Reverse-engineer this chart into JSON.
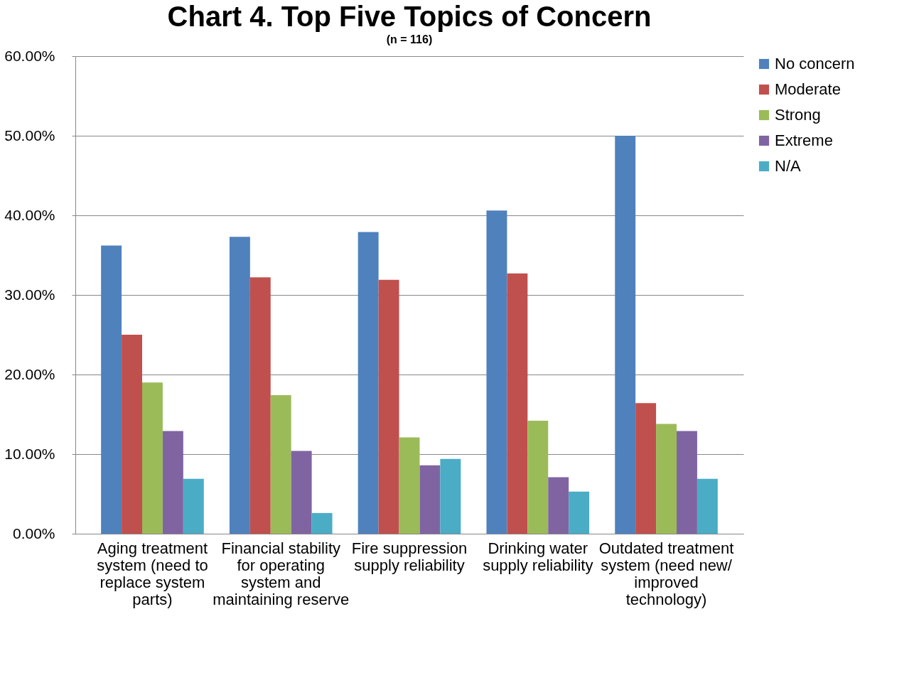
{
  "chart_data": {
    "type": "bar",
    "title": "Chart 4. Top Five Topics of Concern",
    "subtitle": "(n = 116)",
    "categories": [
      "Aging treatment system (need to replace system parts)",
      "Financial stability for operating system and maintaining reserve",
      "Fire suppression supply reliability",
      "Drinking water supply reliability",
      "Outdated treatment system (need new/ improved technology)"
    ],
    "series": [
      {
        "name": "No concern",
        "color": "#4f81bd",
        "values": [
          36.2,
          37.3,
          37.9,
          40.6,
          50.0
        ]
      },
      {
        "name": "Moderate",
        "color": "#c0504d",
        "values": [
          25.0,
          32.2,
          31.9,
          32.7,
          16.4
        ]
      },
      {
        "name": "Strong",
        "color": "#9bbb59",
        "values": [
          19.0,
          17.4,
          12.1,
          14.2,
          13.8
        ]
      },
      {
        "name": "Extreme",
        "color": "#8064a2",
        "values": [
          12.9,
          10.4,
          8.6,
          7.1,
          12.9
        ]
      },
      {
        "name": "N/A",
        "color": "#4bacc6",
        "values": [
          6.9,
          2.6,
          9.4,
          5.3,
          6.9
        ]
      }
    ],
    "ylim": [
      0,
      60
    ],
    "yticks": [
      {
        "value": 0,
        "label": "0.00%"
      },
      {
        "value": 10,
        "label": "10.00%"
      },
      {
        "value": 20,
        "label": "20.00%"
      },
      {
        "value": 30,
        "label": "30.00%"
      },
      {
        "value": 40,
        "label": "40.00%"
      },
      {
        "value": 50,
        "label": "50.00%"
      },
      {
        "value": 60,
        "label": "60.00%"
      }
    ],
    "grid": "y",
    "legend": "right"
  }
}
